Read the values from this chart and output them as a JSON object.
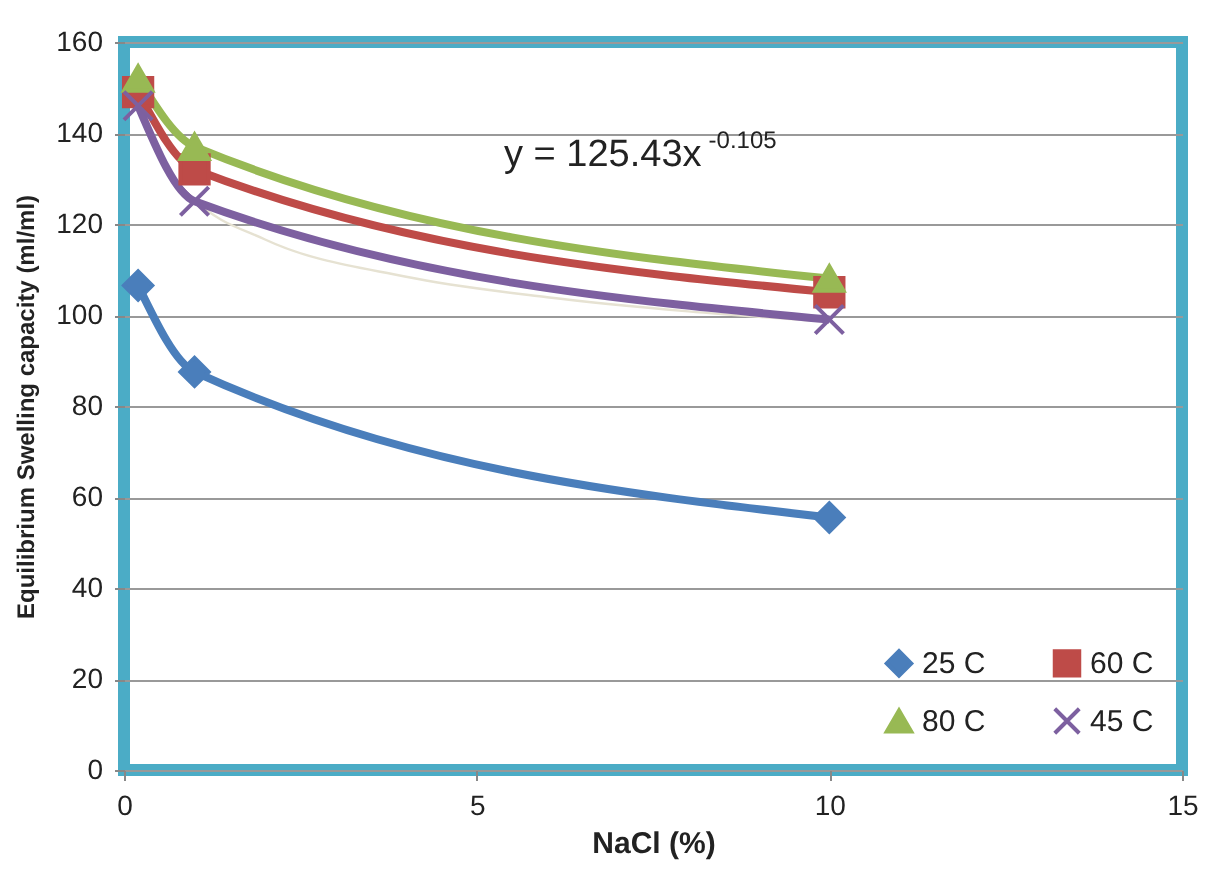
{
  "chart_data": {
    "type": "line",
    "xlabel": "NaCl (%)",
    "ylabel": "Equilibrium Swelling capacity (ml/ml)",
    "xlim": [
      0,
      15
    ],
    "xticks": [
      0,
      5,
      10,
      15
    ],
    "ylim": [
      0,
      160
    ],
    "yticks": [
      0,
      20,
      40,
      60,
      80,
      100,
      120,
      140,
      160
    ],
    "grid": "y",
    "legend": "bottom right",
    "annotations": [
      "y = 125.43x$^{-0.105}$"
    ],
    "series": [
      {
        "name": "25 C",
        "color": "#4a7ebb",
        "marker": "diamond",
        "x": [
          0.2,
          1,
          10
        ],
        "values": [
          106.5,
          87.5,
          55.5
        ]
      },
      {
        "name": "60 C",
        "color": "#be4b48",
        "marker": "square",
        "x": [
          0.2,
          1,
          10
        ],
        "values": [
          149,
          132,
          105
        ]
      },
      {
        "name": "80 C",
        "color": "#98b954",
        "marker": "triangle",
        "x": [
          0.2,
          1,
          10
        ],
        "values": [
          152,
          137,
          108
        ]
      },
      {
        "name": "45 C",
        "color": "#7d60a0",
        "marker": "cross",
        "x": [
          0.2,
          1,
          10
        ],
        "values": [
          146,
          125,
          99
        ]
      },
      {
        "color": "#e6e2d2",
        "marker": "none",
        "x": [
          0.2,
          0.5,
          1,
          2,
          4,
          6,
          8,
          10
        ],
        "values": [
          148.5,
          134.9,
          125.4,
          116.6,
          108.4,
          103.9,
          100.8,
          98.5
        ]
      }
    ]
  }
}
